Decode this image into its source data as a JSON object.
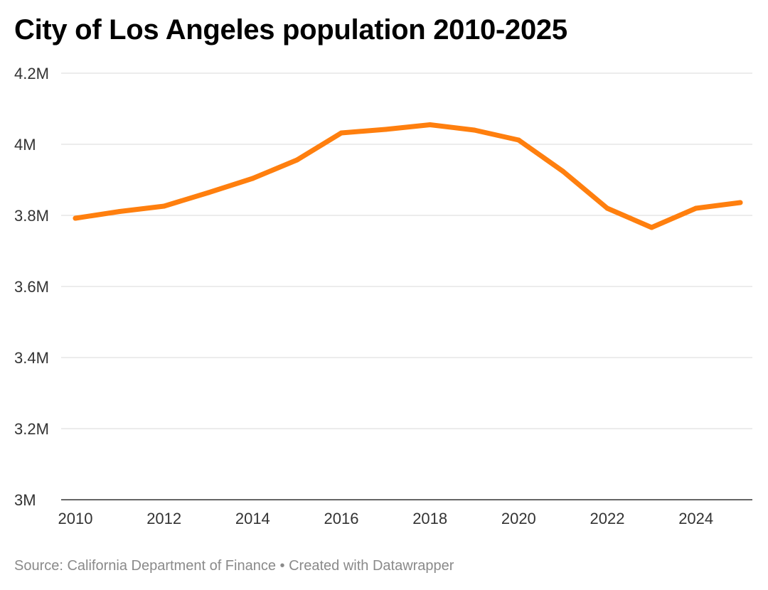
{
  "title": "City of Los Angeles population 2010-2025",
  "footer": {
    "source": "Source: California Department of Finance",
    "separator": "•",
    "credit": "Created with Datawrapper"
  },
  "colors": {
    "line": "#ff7f0e",
    "grid": "#d9d9d9",
    "baseline": "#333333",
    "text": "#333333"
  },
  "chart_data": {
    "type": "line",
    "title": "City of Los Angeles population 2010-2025",
    "xlabel": "",
    "ylabel": "",
    "x": [
      2010,
      2011,
      2012,
      2013,
      2014,
      2015,
      2016,
      2017,
      2018,
      2019,
      2020,
      2021,
      2022,
      2023,
      2024,
      2025
    ],
    "series": [
      {
        "name": "Population",
        "values": [
          3792000,
          3811000,
          3826000,
          3864000,
          3904000,
          3956000,
          4032000,
          4042000,
          4055000,
          4040000,
          4012000,
          3924000,
          3820000,
          3766000,
          3820000,
          3836000
        ]
      }
    ],
    "ylim": [
      3000000,
      4200000
    ],
    "xlim": [
      2010,
      2025
    ],
    "y_ticks": [
      3000000,
      3200000,
      3400000,
      3600000,
      3800000,
      4000000,
      4200000
    ],
    "y_tick_labels": [
      "3M",
      "3.2M",
      "3.4M",
      "3.6M",
      "3.8M",
      "4M",
      "4.2M"
    ],
    "x_ticks": [
      2010,
      2012,
      2014,
      2016,
      2018,
      2020,
      2022,
      2024
    ],
    "x_tick_labels": [
      "2010",
      "2012",
      "2014",
      "2016",
      "2018",
      "2020",
      "2022",
      "2024"
    ],
    "grid": true,
    "legend": "none"
  }
}
